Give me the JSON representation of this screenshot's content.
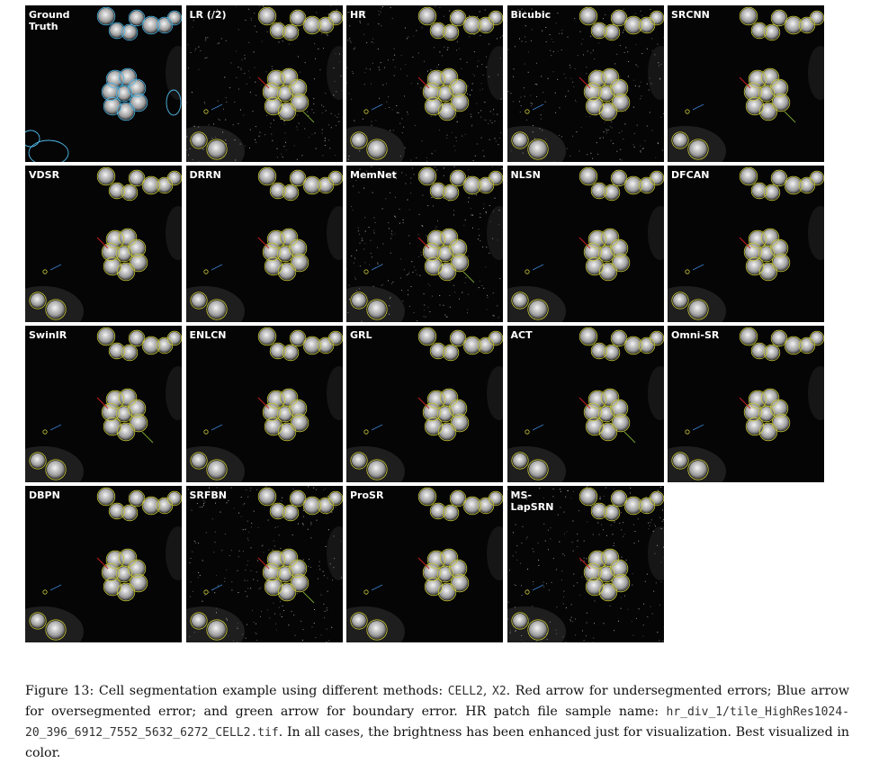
{
  "figure": {
    "panels": [
      {
        "label": "Ground Truth",
        "style": "gt"
      },
      {
        "label": "LR (/2)",
        "style": "noisy"
      },
      {
        "label": "HR",
        "style": "noisy"
      },
      {
        "label": "Bicubic",
        "style": "noisy"
      },
      {
        "label": "SRCNN",
        "style": "soft"
      },
      {
        "label": "VDSR",
        "style": "soft"
      },
      {
        "label": "DRRN",
        "style": "soft"
      },
      {
        "label": "MemNet",
        "style": "noisy"
      },
      {
        "label": "NLSN",
        "style": "soft"
      },
      {
        "label": "DFCAN",
        "style": "soft"
      },
      {
        "label": "SwinIR",
        "style": "soft"
      },
      {
        "label": "ENLCN",
        "style": "soft"
      },
      {
        "label": "GRL",
        "style": "soft"
      },
      {
        "label": "ACT",
        "style": "soft"
      },
      {
        "label": "Omni-SR",
        "style": "soft"
      },
      {
        "label": "DBPN",
        "style": "soft"
      },
      {
        "label": "SRFBN",
        "style": "noisy"
      },
      {
        "label": "ProSR",
        "style": "soft"
      },
      {
        "label": "MS-LapSRN",
        "style": "noisy"
      }
    ],
    "colors": {
      "gt_contour": "#4fb8e8",
      "pred_contour": "#c9c93a",
      "under_arrow": "#d42020",
      "over_arrow": "#3a7fd0",
      "boundary_arrow": "#7aa832"
    }
  },
  "caption": {
    "part1": "Figure 13: Cell segmentation example using different methods: ",
    "code1": "CELL2",
    "sep": ", ",
    "code2": "X2",
    "part2": ".  Red arrow for undersegmented errors; Blue arrow for oversegmented error; and green arrow for boundary error.  HR patch file sample name: ",
    "code3": "hr_div_1/tile_HighRes1024-20_396_6912_7552_5632_6272_CELL2.tif",
    "part3": ". In all cases, the brightness has been enhanced just for visualization. Best visualized in color."
  }
}
